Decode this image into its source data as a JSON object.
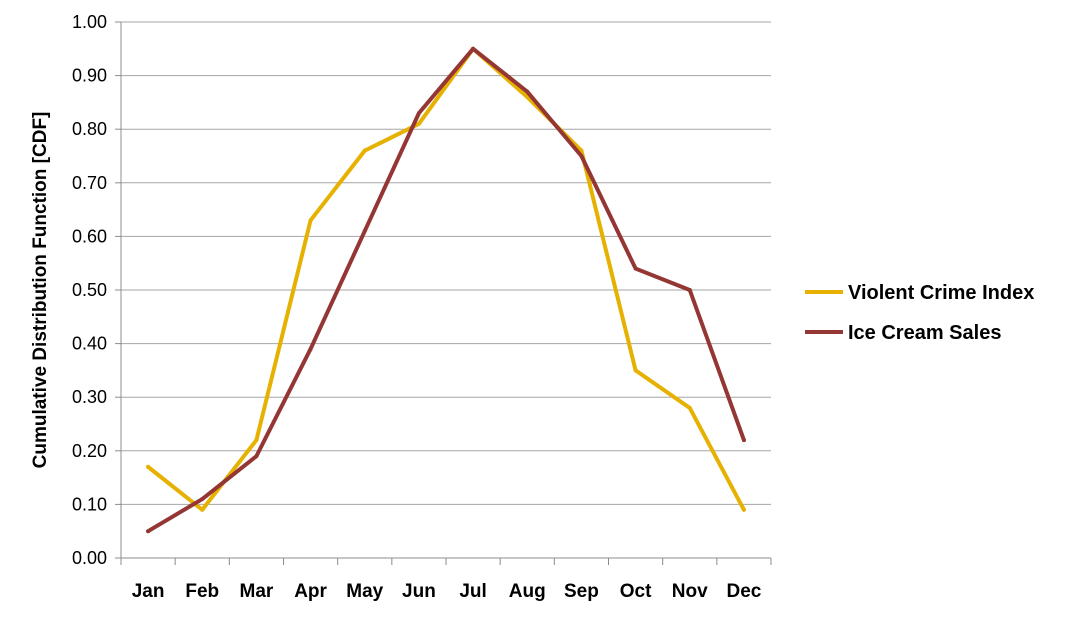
{
  "chart_data": {
    "type": "line",
    "ylabel": "Cumulative Distribution Function [CDF]",
    "xlabel": "",
    "ylim": [
      0,
      1
    ],
    "y_ticks": [
      "0.00",
      "0.10",
      "0.20",
      "0.30",
      "0.40",
      "0.50",
      "0.60",
      "0.70",
      "0.80",
      "0.90",
      "1.00"
    ],
    "categories": [
      "Jan",
      "Feb",
      "Mar",
      "Apr",
      "May",
      "Jun",
      "Jul",
      "Aug",
      "Sep",
      "Oct",
      "Nov",
      "Dec"
    ],
    "grid": true,
    "legend_position": "right",
    "series": [
      {
        "name": "Violent Crime Index",
        "color": "#e6b100",
        "values": [
          0.17,
          0.09,
          0.22,
          0.63,
          0.76,
          0.81,
          0.95,
          0.86,
          0.76,
          0.35,
          0.28,
          0.09
        ]
      },
      {
        "name": "Ice Cream Sales",
        "color": "#943634",
        "values": [
          0.05,
          0.11,
          0.19,
          0.39,
          0.61,
          0.83,
          0.95,
          0.87,
          0.75,
          0.54,
          0.5,
          0.22
        ]
      }
    ]
  }
}
